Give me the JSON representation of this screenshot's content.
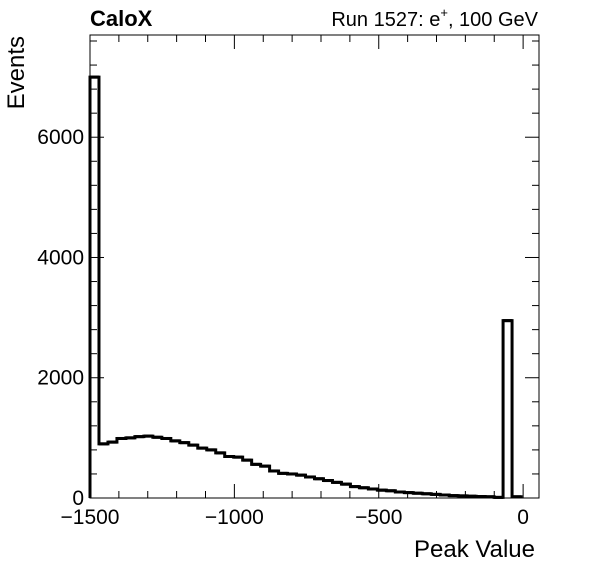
{
  "header": {
    "experiment": "CaloX",
    "run_label": "Run 1527: e",
    "run_superscript": "+",
    "run_suffix": ", 100 GeV"
  },
  "chart_data": {
    "type": "histogram",
    "xlabel": "Peak Value",
    "ylabel": "Events",
    "xlim": [
      -1500,
      55
    ],
    "ylim": [
      0,
      7700
    ],
    "x_ticks": [
      -1500,
      -1000,
      -500,
      0
    ],
    "x_tick_labels": [
      "−1500",
      "−1000",
      "−500",
      "0"
    ],
    "y_ticks": [
      0,
      2000,
      4000,
      6000
    ],
    "y_tick_labels": [
      "0",
      "2000",
      "4000",
      "6000"
    ],
    "grid": false,
    "line_color": "#000000",
    "bin_width": 31.1,
    "bin_edges_start": -1500,
    "counts": [
      7000,
      900,
      930,
      990,
      1000,
      1020,
      1030,
      1010,
      990,
      950,
      920,
      880,
      830,
      800,
      750,
      690,
      680,
      630,
      560,
      530,
      450,
      410,
      400,
      380,
      350,
      320,
      290,
      260,
      230,
      190,
      170,
      150,
      130,
      120,
      100,
      90,
      80,
      70,
      60,
      50,
      40,
      35,
      30,
      25,
      20,
      10,
      2950,
      20
    ]
  }
}
